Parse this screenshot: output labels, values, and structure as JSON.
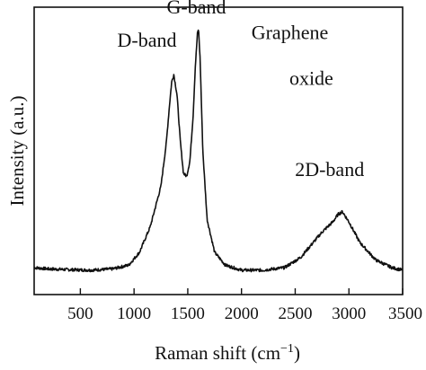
{
  "chart_data": {
    "type": "line",
    "title": "",
    "xlabel": "Raman shift (cm",
    "xlabel_superscript": "−1",
    "xlabel_suffix": ")",
    "ylabel": "Intensity (a.u.)",
    "xlim": [
      70,
      3500
    ],
    "ylim": [
      0,
      1
    ],
    "x_ticks": [
      500,
      1000,
      1500,
      2000,
      2500,
      3000,
      3500
    ],
    "x_tick_labels": [
      "500",
      "1000",
      "1500",
      "2000",
      "2500",
      "3000",
      "3500"
    ],
    "y_ticks_shown": false,
    "grid": false,
    "color": "#111111",
    "series": [
      {
        "x": [
          70,
          200,
          400,
          600,
          800,
          950,
          1050,
          1150,
          1250,
          1300,
          1330,
          1350,
          1370,
          1400,
          1430,
          1460,
          1490,
          1520,
          1550,
          1570,
          1590,
          1600,
          1615,
          1640,
          1680,
          1750,
          1850,
          2000,
          2200,
          2400,
          2550,
          2650,
          2750,
          2850,
          2900,
          2940,
          3000,
          3100,
          3250,
          3400,
          3500
        ],
        "y": [
          0.06,
          0.055,
          0.052,
          0.05,
          0.055,
          0.07,
          0.12,
          0.22,
          0.38,
          0.55,
          0.7,
          0.79,
          0.82,
          0.74,
          0.56,
          0.43,
          0.42,
          0.48,
          0.66,
          0.85,
          0.98,
          1.0,
          0.88,
          0.52,
          0.25,
          0.12,
          0.07,
          0.05,
          0.05,
          0.06,
          0.1,
          0.15,
          0.2,
          0.24,
          0.27,
          0.28,
          0.24,
          0.16,
          0.09,
          0.06,
          0.05
        ]
      }
    ],
    "annotations": [
      {
        "text": "G-band",
        "x": 1580,
        "y": 1.06
      },
      {
        "text": "D-band",
        "x": 1120,
        "y": 0.93
      },
      {
        "text": "Graphene",
        "x": 2450,
        "y": 0.96
      },
      {
        "text": "oxide",
        "x": 2650,
        "y": 0.78
      },
      {
        "text": "2D-band",
        "x": 2820,
        "y": 0.42
      }
    ]
  }
}
